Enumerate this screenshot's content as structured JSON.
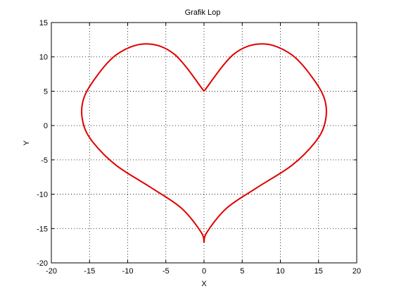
{
  "chart_data": {
    "type": "line",
    "title": "Grafik Lop",
    "xlabel": "X",
    "ylabel": "Y",
    "xlim": [
      -20,
      20
    ],
    "ylim": [
      -20,
      15
    ],
    "xticks": [
      -20,
      -15,
      -10,
      -5,
      0,
      5,
      10,
      15,
      20
    ],
    "yticks": [
      -20,
      -15,
      -10,
      -5,
      0,
      5,
      10,
      15
    ],
    "grid": true,
    "series": [
      {
        "color": "#e00000",
        "x": [
          0,
          3.9,
          7.7,
          11.5,
          14.5,
          15.9,
          15.8,
          14.5,
          11.5,
          7.0,
          3.0,
          0.4,
          0,
          -0.4,
          -3.0,
          -7.0,
          -11.5,
          -14.5,
          -15.8,
          -15.9,
          -14.5,
          -11.5,
          -7.7,
          -3.9,
          0
        ],
        "y": [
          5,
          10.4,
          11.9,
          10.3,
          6.5,
          3.4,
          0.2,
          -2.5,
          -5.8,
          -9.0,
          -12.0,
          -15.5,
          -17,
          -15.5,
          -12.0,
          -9.0,
          -5.8,
          -2.5,
          0.2,
          3.4,
          6.5,
          10.3,
          11.9,
          10.4,
          5
        ]
      }
    ]
  }
}
